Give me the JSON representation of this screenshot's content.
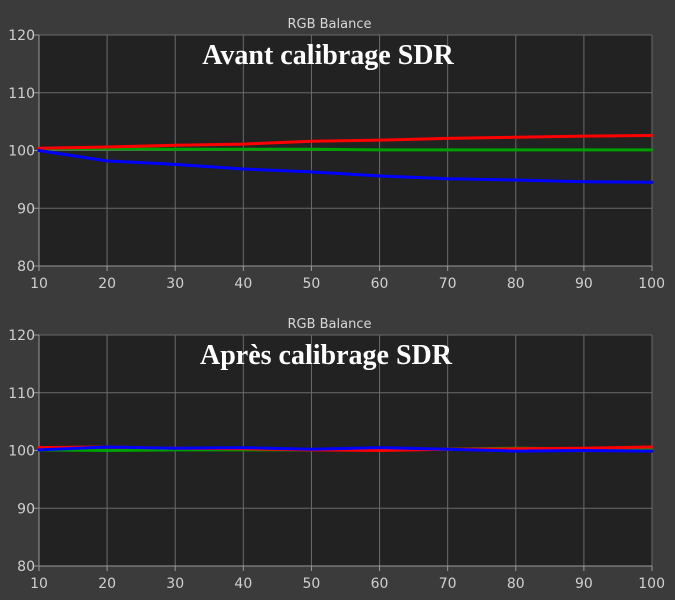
{
  "chart_data": [
    {
      "type": "line",
      "title": "RGB Balance",
      "subtitle": "Avant calibrage SDR",
      "xlabel": "",
      "ylabel": "",
      "xlim": [
        10,
        100
      ],
      "ylim": [
        80,
        120
      ],
      "x_ticks": [
        10,
        20,
        30,
        40,
        50,
        60,
        70,
        80,
        90,
        100
      ],
      "y_ticks": [
        80,
        90,
        100,
        110,
        120
      ],
      "grid": true,
      "x": [
        10,
        20,
        30,
        40,
        50,
        60,
        70,
        80,
        90,
        100
      ],
      "series": [
        {
          "color": "#ff0000",
          "values": [
            100.4,
            100.6,
            100.9,
            101.1,
            101.6,
            101.8,
            102.1,
            102.3,
            102.5,
            102.6
          ]
        },
        {
          "color": "#00a000",
          "values": [
            100.3,
            100.3,
            100.2,
            100.2,
            100.2,
            100.1,
            100.1,
            100.1,
            100.1,
            100.1
          ]
        },
        {
          "color": "#0000ff",
          "values": [
            100.0,
            98.2,
            97.6,
            96.8,
            96.3,
            95.6,
            95.1,
            94.9,
            94.6,
            94.5
          ]
        }
      ]
    },
    {
      "type": "line",
      "title": "RGB Balance",
      "subtitle": "Après calibrage SDR",
      "xlabel": "",
      "ylabel": "",
      "xlim": [
        10,
        100
      ],
      "ylim": [
        80,
        120
      ],
      "x_ticks": [
        10,
        20,
        30,
        40,
        50,
        60,
        70,
        80,
        90,
        100
      ],
      "y_ticks": [
        80,
        90,
        100,
        110,
        120
      ],
      "grid": true,
      "x": [
        10,
        20,
        30,
        40,
        50,
        60,
        70,
        80,
        90,
        100
      ],
      "series": [
        {
          "color": "#ff0000",
          "values": [
            100.5,
            100.6,
            100.4,
            100.3,
            100.1,
            100.0,
            100.2,
            100.3,
            100.4,
            100.6
          ]
        },
        {
          "color": "#00a000",
          "values": [
            100.1,
            100.0,
            100.1,
            100.1,
            100.1,
            100.3,
            100.2,
            100.4,
            100.3,
            100.1
          ]
        },
        {
          "color": "#0000ff",
          "values": [
            100.1,
            100.6,
            100.4,
            100.5,
            100.2,
            100.5,
            100.2,
            99.9,
            100.0,
            99.9
          ]
        }
      ]
    }
  ]
}
